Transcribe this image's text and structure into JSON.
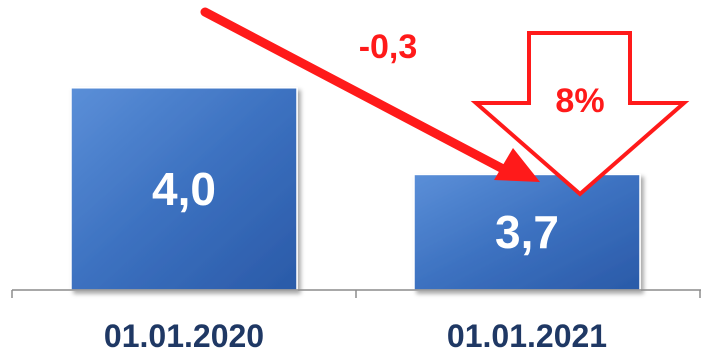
{
  "chart_data": {
    "type": "bar",
    "title": "",
    "xlabel": "",
    "ylabel": "",
    "categories": [
      "01.01.2020",
      "01.01.2021"
    ],
    "values": [
      4.0,
      3.7
    ],
    "value_labels": [
      "4,0",
      "3,7"
    ],
    "ylim": [
      3.3,
      4.2
    ],
    "grid": false,
    "legend": "none",
    "annotations": {
      "change_label": "-0,3",
      "percent_label": "8%"
    }
  },
  "colors": {
    "bar": "#3c71c0",
    "bar_dark": "#244f99",
    "accent_red": "#ff1a1a",
    "axis": "#8c8c8c",
    "tick_text": "#1f3864"
  }
}
